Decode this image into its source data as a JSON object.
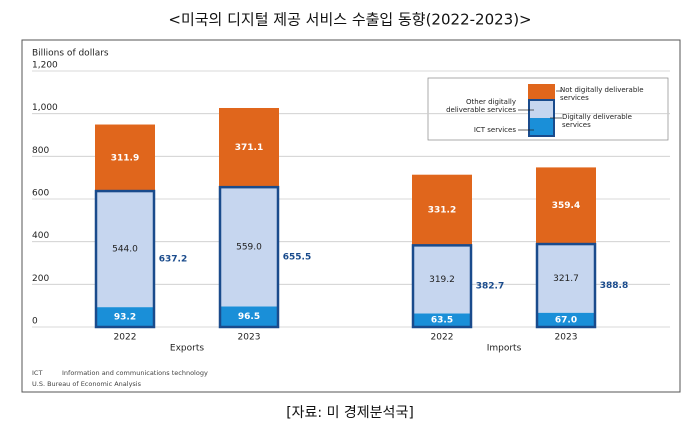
{
  "chart_data": {
    "type": "stacked_bar",
    "title": "<미국의 디지털 제공 서비스 수출입 동향(2022-2023)>",
    "ylabel": "Billions of dollars",
    "groups": [
      "Exports",
      "Imports"
    ],
    "categories": [
      "2022",
      "2023",
      "2022",
      "2023"
    ],
    "ylim": [
      0,
      1200
    ],
    "yticks": [
      0,
      200,
      400,
      600,
      800,
      {
        "value": 1000,
        "label": "1,000"
      },
      {
        "value": 1200,
        "label": "1,200"
      }
    ],
    "grid": true,
    "series": [
      {
        "name": "ICT services",
        "color": "#1a8fd8",
        "values": [
          93.2,
          96.5,
          63.5,
          67.0
        ],
        "value_labels": [
          "93.2",
          "96.5",
          "63.5",
          "67.0"
        ]
      },
      {
        "name": "Other digitally deliverable services",
        "color": "#c6d6ef",
        "values": [
          544.0,
          559.0,
          319.2,
          321.7
        ],
        "value_labels": [
          "544.0",
          "559.0",
          "319.2",
          "321.7"
        ]
      },
      {
        "name": "Not digitally deliverable services",
        "color": "#e0661c",
        "values": [
          311.9,
          371.1,
          331.2,
          359.4
        ],
        "value_labels": [
          "311.9",
          "371.1",
          "331.2",
          "359.4"
        ]
      }
    ],
    "digital_total": {
      "name": "Digitally deliverable services",
      "color": "#1a4b8c",
      "values": [
        637.2,
        655.5,
        382.7,
        388.8
      ]
    },
    "footnotes": [
      [
        "ICT",
        "Information and communications technology"
      ],
      [
        "U.S. Bureau of Economic Analysis"
      ]
    ],
    "source": "[자료: 미 경제분석국]"
  }
}
